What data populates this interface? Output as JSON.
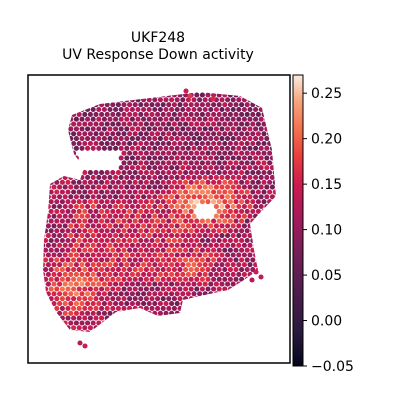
{
  "chart_data": {
    "type": "heatmap",
    "title": "UKF248",
    "subtitle": "UV Response Down activity",
    "xlabel": "",
    "ylabel": "",
    "grid": false,
    "colormap": "rocket",
    "colorbar": {
      "vmin": -0.05,
      "vmax": 0.27,
      "ticks": [
        -0.05,
        0.0,
        0.05,
        0.1,
        0.15,
        0.2,
        0.25
      ],
      "tick_labels": [
        "−0.05",
        "0.00",
        "0.05",
        "0.10",
        "0.15",
        "0.20",
        "0.25"
      ]
    },
    "value_summary": {
      "dominant_range": [
        0.0,
        0.15
      ],
      "high_regions": [
        "center-right band",
        "lower-left lobe"
      ],
      "low_regions": [
        "upper-left lobe edges",
        "left boundary"
      ]
    }
  },
  "colors": {
    "axes_frame": "#000000",
    "background": "#ffffff"
  }
}
